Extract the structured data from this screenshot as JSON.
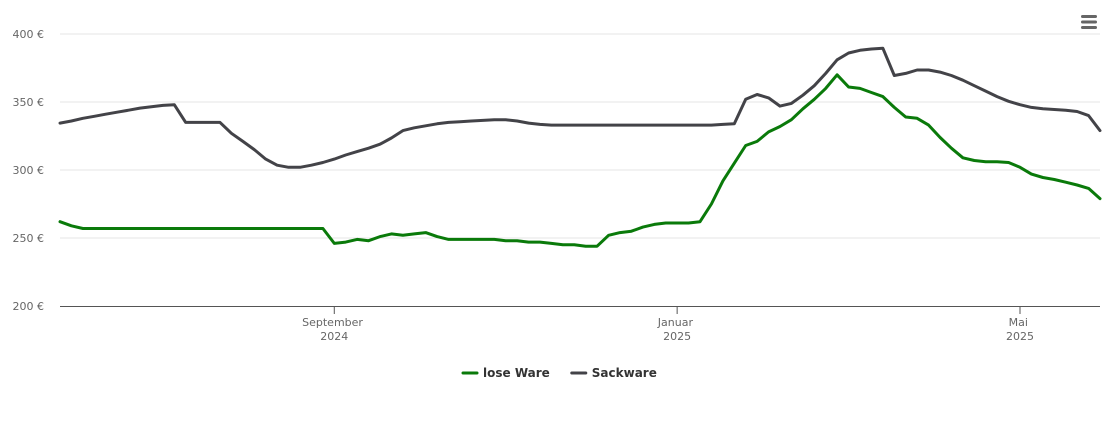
{
  "chart_data": {
    "type": "line",
    "categories": [
      null,
      null,
      null,
      null,
      null,
      null,
      null,
      null,
      null,
      null,
      null,
      null,
      null,
      null,
      null,
      null,
      null,
      null,
      null,
      null,
      null,
      null,
      null,
      null,
      "September 2024",
      null,
      null,
      null,
      null,
      null,
      null,
      null,
      null,
      null,
      null,
      null,
      null,
      null,
      null,
      null,
      null,
      null,
      null,
      null,
      null,
      null,
      null,
      null,
      null,
      null,
      null,
      null,
      null,
      null,
      "Januar 2025",
      null,
      null,
      null,
      null,
      null,
      null,
      null,
      null,
      null,
      null,
      null,
      null,
      null,
      null,
      null,
      null,
      null,
      null,
      null,
      null,
      null,
      null,
      null,
      null,
      null,
      null,
      null,
      null,
      null,
      "Mai 2025",
      null,
      null,
      null,
      null,
      null,
      null,
      null
    ],
    "series": [
      {
        "name": "lose Ware",
        "color": "#0a7a0a",
        "values": [
          262,
          259,
          257,
          257,
          257,
          257,
          257,
          257,
          257,
          257,
          257,
          257,
          257,
          257,
          257,
          257,
          257,
          257,
          257,
          257,
          257,
          257,
          257,
          257,
          246,
          247,
          249,
          248,
          251,
          253,
          252,
          253,
          254,
          251,
          249,
          249,
          249,
          249,
          249,
          248,
          248,
          247,
          247,
          246,
          245,
          245,
          244,
          244,
          252,
          254,
          255,
          258,
          260,
          261,
          261,
          261,
          262,
          275,
          292,
          305,
          318,
          321,
          328,
          332,
          337,
          345,
          352,
          360,
          370,
          361,
          360,
          357,
          354,
          346,
          339,
          338,
          333,
          324,
          316,
          309,
          307,
          306,
          306,
          305.5,
          302,
          297,
          294.5,
          293,
          291,
          289,
          286.5,
          279
        ]
      },
      {
        "name": "Sackware",
        "color": "#434348",
        "values": [
          334.5,
          336,
          338,
          339.5,
          341,
          342.5,
          344,
          345.5,
          346.5,
          347.5,
          348,
          335,
          335,
          335,
          335,
          327,
          321,
          315,
          308,
          303.5,
          302,
          302,
          303.5,
          305.5,
          308,
          311,
          313.5,
          316,
          319,
          323.5,
          329,
          331,
          332.5,
          334,
          335,
          335.5,
          336,
          336.5,
          337,
          337,
          336,
          334.5,
          333.5,
          333,
          333,
          333,
          333,
          333,
          333,
          333,
          333,
          333,
          333,
          333,
          333,
          333,
          333,
          333,
          333.5,
          334,
          352,
          355.5,
          353,
          347,
          349,
          355,
          362,
          371,
          381,
          386,
          388,
          389,
          389.5,
          369.5,
          371,
          373.5,
          373.5,
          372,
          369.5,
          366,
          362,
          358,
          354,
          350.5,
          348,
          346,
          345,
          344.5,
          344,
          343,
          340,
          329
        ]
      }
    ],
    "ylim": [
      200,
      400
    ],
    "yticks": [
      {
        "value": 200,
        "label": "200 €"
      },
      {
        "value": 250,
        "label": "250 €"
      },
      {
        "value": 300,
        "label": "300 €"
      },
      {
        "value": 350,
        "label": "350 €"
      },
      {
        "value": 400,
        "label": "400 €"
      }
    ],
    "grid": true
  }
}
